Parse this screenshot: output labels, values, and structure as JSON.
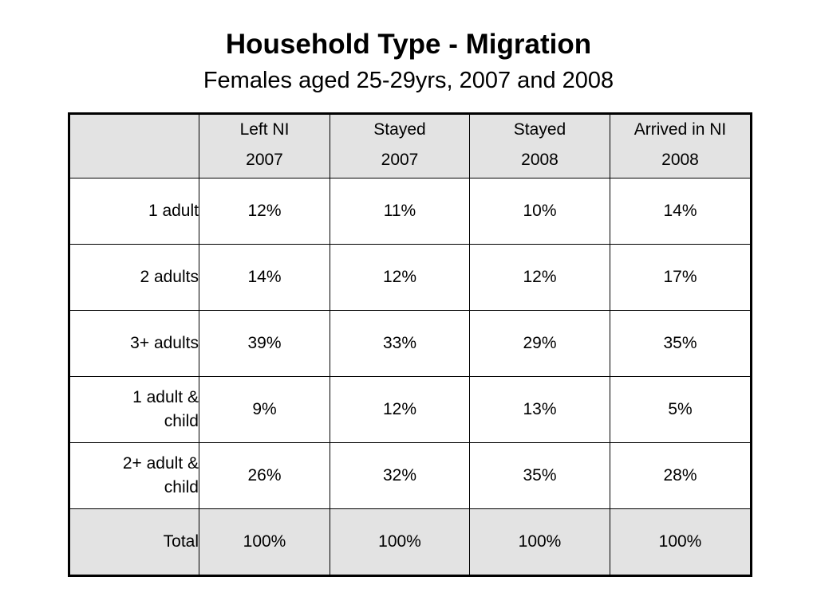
{
  "title": "Household Type - Migration",
  "subtitle": "Females aged 25-29yrs, 2007 and 2008",
  "table": {
    "columns": [
      {
        "line1": "Left NI",
        "line2": "2007"
      },
      {
        "line1": "Stayed",
        "line2": "2007"
      },
      {
        "line1": "Stayed",
        "line2": "2008"
      },
      {
        "line1": "Arrived in NI",
        "line2": "2008"
      }
    ],
    "rows": [
      {
        "line1": "1 adult",
        "line2": "",
        "values": [
          "12%",
          "11%",
          "10%",
          "14%"
        ]
      },
      {
        "line1": "2 adults",
        "line2": "",
        "values": [
          "14%",
          "12%",
          "12%",
          "17%"
        ]
      },
      {
        "line1": "3+ adults",
        "line2": "",
        "values": [
          "39%",
          "33%",
          "29%",
          "35%"
        ]
      },
      {
        "line1": "1 adult &",
        "line2": "child",
        "values": [
          "9%",
          "12%",
          "13%",
          "5%"
        ]
      },
      {
        "line1": "2+ adult &",
        "line2": "child",
        "values": [
          "26%",
          "32%",
          "35%",
          "28%"
        ]
      }
    ],
    "total": {
      "label": "Total",
      "values": [
        "100%",
        "100%",
        "100%",
        "100%"
      ]
    }
  },
  "colors": {
    "header_fill": "#e3e3e3",
    "total_fill": "#e3e3e3",
    "border": "#000000"
  }
}
